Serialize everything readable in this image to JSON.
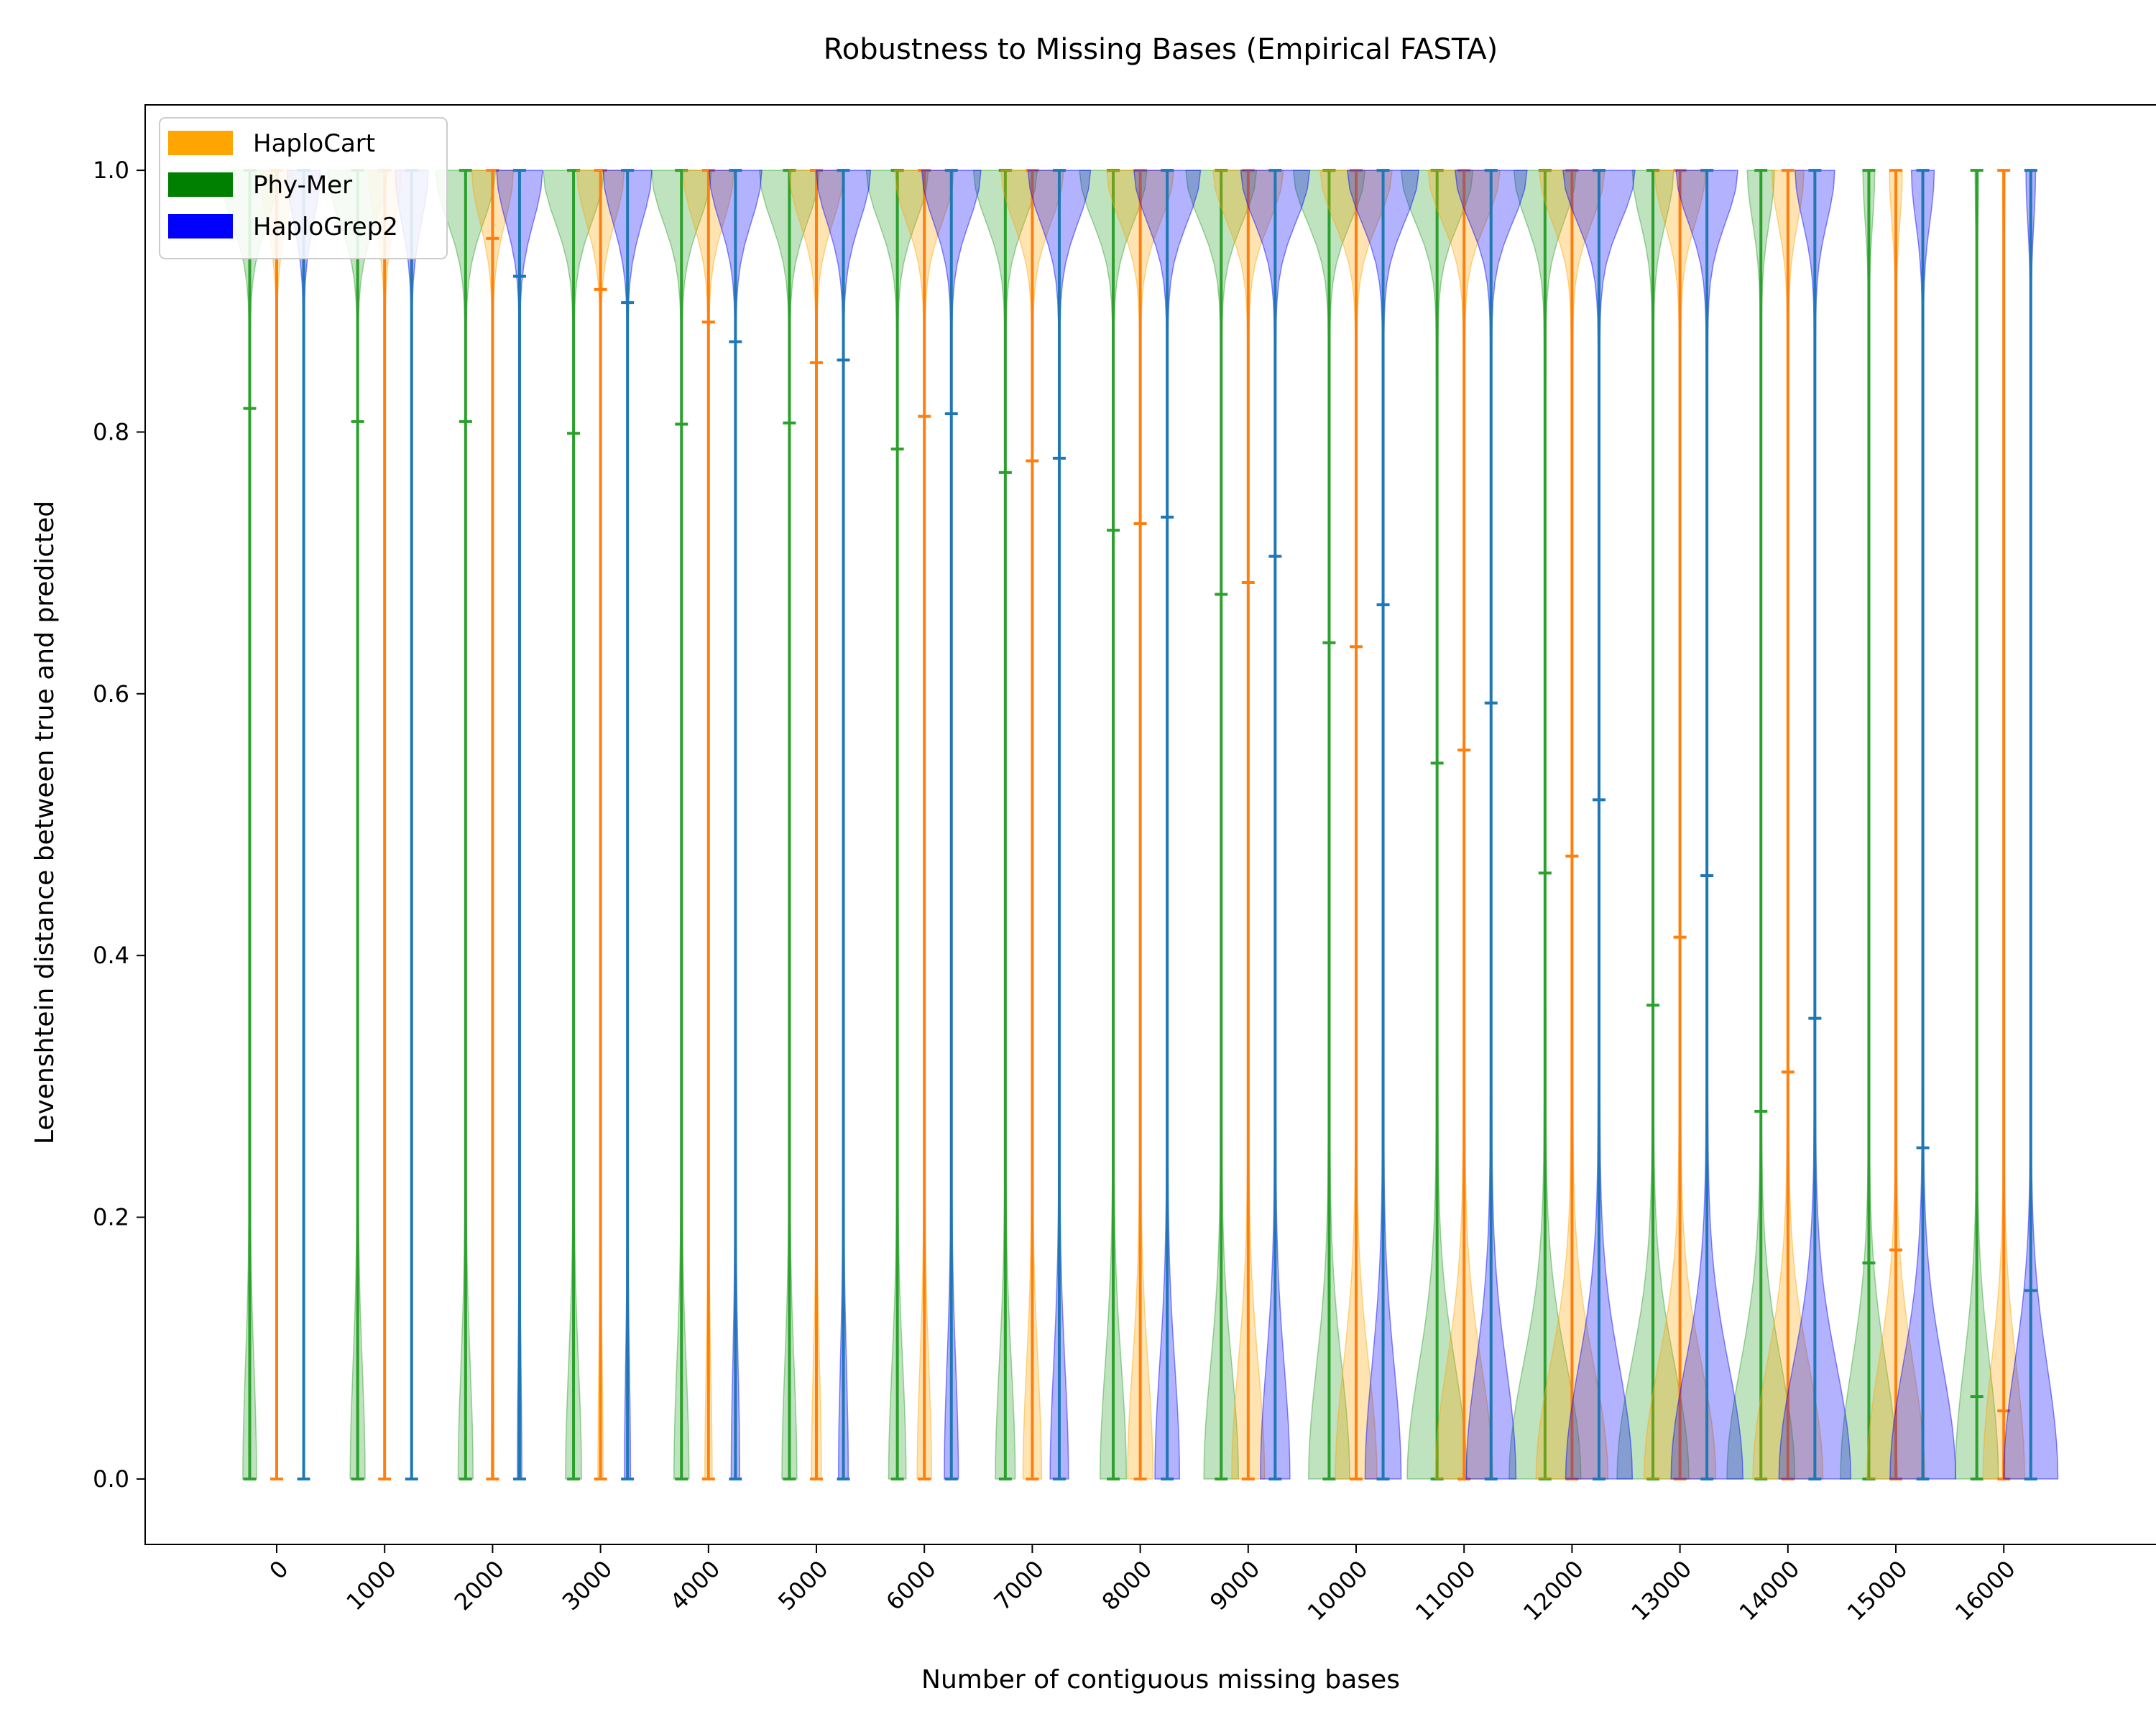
{
  "chart_data": {
    "type": "violin",
    "title": "Robustness to Missing Bases (Empirical FASTA)",
    "xlabel": "Number of contiguous missing bases",
    "ylabel": "Levenshtein distance between true and predicted",
    "categories": [
      "0",
      "1000",
      "2000",
      "3000",
      "4000",
      "5000",
      "6000",
      "7000",
      "8000",
      "9000",
      "10000",
      "11000",
      "12000",
      "13000",
      "14000",
      "15000",
      "16000"
    ],
    "ylim": [
      -0.05,
      1.05
    ],
    "yticks": [
      "0.0",
      "0.2",
      "0.4",
      "0.6",
      "0.8",
      "1.0"
    ],
    "legend_position": "top-left",
    "grid": false,
    "series": [
      {
        "name": "Phy-Mer",
        "legend_color": "#008000",
        "line_color": "#2ca02c",
        "fill_color": "#2ca02c",
        "offset": -0.25,
        "mean": [
          0.818,
          0.808,
          0.808,
          0.799,
          0.806,
          0.807,
          0.787,
          0.769,
          0.725,
          0.676,
          0.639,
          0.547,
          0.463,
          0.362,
          0.281,
          0.165,
          0.063
        ]
      },
      {
        "name": "HaploCart",
        "legend_color": "#ffa500",
        "line_color": "#ff7f0e",
        "fill_color": "#ffa500",
        "offset": 0,
        "mean": [
          1.0,
          1.0,
          0.948,
          0.909,
          0.884,
          0.853,
          0.812,
          0.778,
          0.73,
          0.685,
          0.636,
          0.557,
          0.476,
          0.414,
          0.311,
          0.175,
          0.052
        ]
      },
      {
        "name": "HaploGrep2",
        "legend_color": "#0000ff",
        "line_color": "#1f77b4",
        "fill_color": "#0000ff",
        "offset": 0.25,
        "mean": [
          1.0,
          1.0,
          0.919,
          0.899,
          0.869,
          0.855,
          0.814,
          0.78,
          0.735,
          0.705,
          0.668,
          0.593,
          0.519,
          0.461,
          0.352,
          0.253,
          0.144
        ]
      }
    ]
  }
}
